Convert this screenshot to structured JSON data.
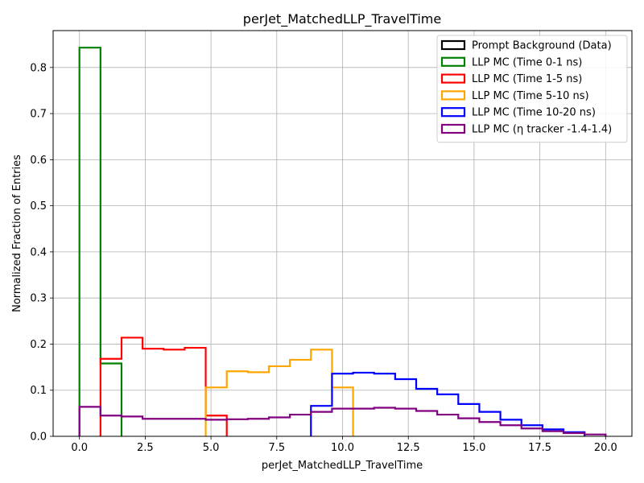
{
  "chart_data": {
    "type": "histogram-step",
    "title": "perJet_MatchedLLP_TravelTime",
    "xlabel": "perJet_MatchedLLP_TravelTime",
    "ylabel": "Normalized Fraction of Entries",
    "xlim": [
      -1,
      21
    ],
    "ylim": [
      0,
      0.88
    ],
    "grid": true,
    "legend_position": "top-right",
    "x_ticks": [
      0,
      2.5,
      5,
      7.5,
      10,
      12.5,
      15,
      17.5,
      20
    ],
    "x_tick_labels": [
      "0.0",
      "2.5",
      "5.0",
      "7.5",
      "10.0",
      "12.5",
      "15.0",
      "17.5",
      "20.0"
    ],
    "y_ticks": [
      0,
      0.1,
      0.2,
      0.3,
      0.4,
      0.5,
      0.6,
      0.7,
      0.8
    ],
    "y_tick_labels": [
      "0.0",
      "0.1",
      "0.2",
      "0.3",
      "0.4",
      "0.5",
      "0.6",
      "0.7",
      "0.8"
    ],
    "bin_edges": [
      0,
      0.8,
      1.6,
      2.4,
      3.2,
      4.0,
      4.8,
      5.6,
      6.4,
      7.2,
      8.0,
      8.8,
      9.6,
      10.4,
      11.2,
      12.0,
      12.8,
      13.6,
      14.4,
      15.2,
      16.0,
      16.8,
      17.6,
      18.4,
      19.2,
      20.0
    ],
    "series": [
      {
        "name": "Prompt Background (Data)",
        "color": "#000000",
        "values": []
      },
      {
        "name": "LLP MC (Time 0-1 ns)",
        "color": "#008000",
        "values": [
          0.843,
          0.158,
          0,
          0,
          0,
          0,
          0,
          0,
          0,
          0,
          0,
          0,
          0,
          0,
          0,
          0,
          0,
          0,
          0,
          0,
          0,
          0,
          0,
          0,
          0
        ]
      },
      {
        "name": "LLP MC (Time 1-5 ns)",
        "color": "#ff0000",
        "values": [
          0,
          0.168,
          0.214,
          0.19,
          0.188,
          0.192,
          0.045,
          0,
          0,
          0,
          0,
          0,
          0,
          0,
          0,
          0,
          0,
          0,
          0,
          0,
          0,
          0,
          0,
          0,
          0
        ]
      },
      {
        "name": "LLP MC (Time 5-10 ns)",
        "color": "#ffa500",
        "values": [
          0,
          0,
          0,
          0,
          0,
          0,
          0.106,
          0.141,
          0.139,
          0.152,
          0.166,
          0.188,
          0.106,
          0,
          0,
          0,
          0,
          0,
          0,
          0,
          0,
          0,
          0,
          0,
          0
        ]
      },
      {
        "name": "LLP MC (Time 10-20 ns)",
        "color": "#0000ff",
        "values": [
          0,
          0,
          0,
          0,
          0,
          0,
          0,
          0,
          0,
          0,
          0,
          0.066,
          0.136,
          0.138,
          0.136,
          0.124,
          0.103,
          0.091,
          0.07,
          0.053,
          0.036,
          0.024,
          0.015,
          0.009,
          0
        ]
      },
      {
        "name": "LLP MC (η tracker -1.4-1.4)",
        "color": "#800080",
        "values": [
          0.064,
          0.045,
          0.043,
          0.038,
          0.038,
          0.038,
          0.036,
          0.037,
          0.038,
          0.041,
          0.047,
          0.053,
          0.06,
          0.06,
          0.062,
          0.06,
          0.055,
          0.047,
          0.039,
          0.031,
          0.024,
          0.017,
          0.011,
          0.007,
          0.004
        ]
      }
    ]
  }
}
